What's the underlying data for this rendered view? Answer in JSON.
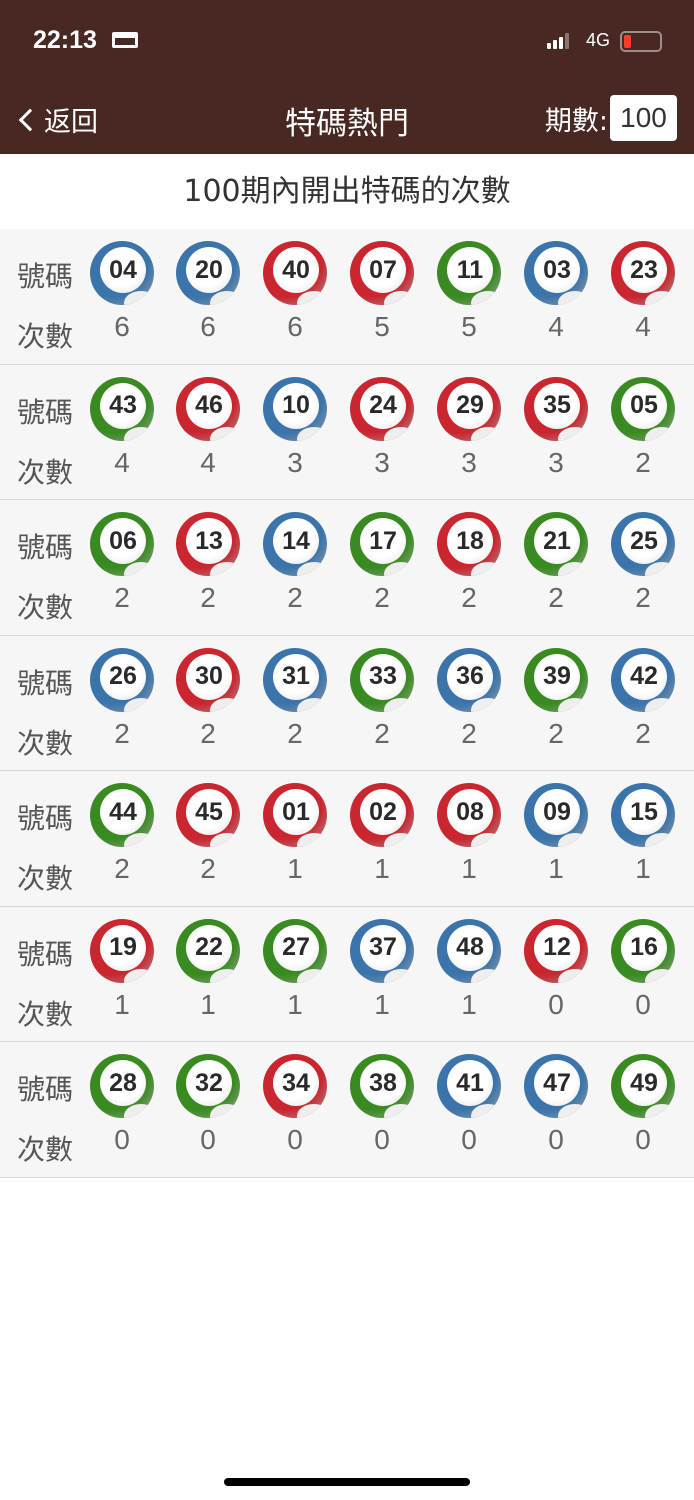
{
  "status_bar": {
    "time": "22:13",
    "network": "4G",
    "battery_level": 0.15
  },
  "nav": {
    "back_label": "返回",
    "title": "特碼熱門",
    "periods_label": "期數:",
    "periods_value": "100"
  },
  "subtitle": "100期內開出特碼的次數",
  "labels": {
    "number": "號碼",
    "count": "次數"
  },
  "colors": {
    "blue": "#3b74aa",
    "red": "#c9262f",
    "green": "#3a8a22",
    "header": "#472822"
  },
  "rows": [
    [
      {
        "n": "04",
        "c": "6",
        "color": "blue"
      },
      {
        "n": "20",
        "c": "6",
        "color": "blue"
      },
      {
        "n": "40",
        "c": "6",
        "color": "red"
      },
      {
        "n": "07",
        "c": "5",
        "color": "red"
      },
      {
        "n": "11",
        "c": "5",
        "color": "green"
      },
      {
        "n": "03",
        "c": "4",
        "color": "blue"
      },
      {
        "n": "23",
        "c": "4",
        "color": "red"
      }
    ],
    [
      {
        "n": "43",
        "c": "4",
        "color": "green"
      },
      {
        "n": "46",
        "c": "4",
        "color": "red"
      },
      {
        "n": "10",
        "c": "3",
        "color": "blue"
      },
      {
        "n": "24",
        "c": "3",
        "color": "red"
      },
      {
        "n": "29",
        "c": "3",
        "color": "red"
      },
      {
        "n": "35",
        "c": "3",
        "color": "red"
      },
      {
        "n": "05",
        "c": "2",
        "color": "green"
      }
    ],
    [
      {
        "n": "06",
        "c": "2",
        "color": "green"
      },
      {
        "n": "13",
        "c": "2",
        "color": "red"
      },
      {
        "n": "14",
        "c": "2",
        "color": "blue"
      },
      {
        "n": "17",
        "c": "2",
        "color": "green"
      },
      {
        "n": "18",
        "c": "2",
        "color": "red"
      },
      {
        "n": "21",
        "c": "2",
        "color": "green"
      },
      {
        "n": "25",
        "c": "2",
        "color": "blue"
      }
    ],
    [
      {
        "n": "26",
        "c": "2",
        "color": "blue"
      },
      {
        "n": "30",
        "c": "2",
        "color": "red"
      },
      {
        "n": "31",
        "c": "2",
        "color": "blue"
      },
      {
        "n": "33",
        "c": "2",
        "color": "green"
      },
      {
        "n": "36",
        "c": "2",
        "color": "blue"
      },
      {
        "n": "39",
        "c": "2",
        "color": "green"
      },
      {
        "n": "42",
        "c": "2",
        "color": "blue"
      }
    ],
    [
      {
        "n": "44",
        "c": "2",
        "color": "green"
      },
      {
        "n": "45",
        "c": "2",
        "color": "red"
      },
      {
        "n": "01",
        "c": "1",
        "color": "red"
      },
      {
        "n": "02",
        "c": "1",
        "color": "red"
      },
      {
        "n": "08",
        "c": "1",
        "color": "red"
      },
      {
        "n": "09",
        "c": "1",
        "color": "blue"
      },
      {
        "n": "15",
        "c": "1",
        "color": "blue"
      }
    ],
    [
      {
        "n": "19",
        "c": "1",
        "color": "red"
      },
      {
        "n": "22",
        "c": "1",
        "color": "green"
      },
      {
        "n": "27",
        "c": "1",
        "color": "green"
      },
      {
        "n": "37",
        "c": "1",
        "color": "blue"
      },
      {
        "n": "48",
        "c": "1",
        "color": "blue"
      },
      {
        "n": "12",
        "c": "0",
        "color": "red"
      },
      {
        "n": "16",
        "c": "0",
        "color": "green"
      }
    ],
    [
      {
        "n": "28",
        "c": "0",
        "color": "green"
      },
      {
        "n": "32",
        "c": "0",
        "color": "green"
      },
      {
        "n": "34",
        "c": "0",
        "color": "red"
      },
      {
        "n": "38",
        "c": "0",
        "color": "green"
      },
      {
        "n": "41",
        "c": "0",
        "color": "blue"
      },
      {
        "n": "47",
        "c": "0",
        "color": "blue"
      },
      {
        "n": "49",
        "c": "0",
        "color": "green"
      }
    ]
  ]
}
